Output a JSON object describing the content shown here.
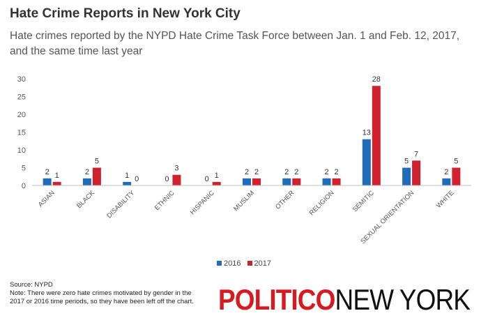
{
  "header": {
    "title": "Hate Crime Reports in New York City",
    "subtitle": "Hate crimes reported by the NYPD Hate Crime Task Force between Jan. 1 and Feb. 12, 2017, and the same time last year"
  },
  "chart_data": {
    "type": "bar",
    "categories": [
      "ASIAN",
      "BLACK",
      "DISABILITY",
      "ETHNIC",
      "HISPANIC",
      "MUSLIM",
      "OTHER",
      "RELIGION",
      "SEMITIC",
      "SEXUAL ORIENTATION",
      "WHITE"
    ],
    "series": [
      {
        "name": "2016",
        "color": "#1f6cb8",
        "values": [
          2,
          2,
          1,
          0,
          0,
          2,
          2,
          2,
          13,
          5,
          2
        ]
      },
      {
        "name": "2017",
        "color": "#d0212e",
        "values": [
          1,
          5,
          0,
          3,
          1,
          2,
          2,
          2,
          28,
          7,
          5
        ]
      }
    ],
    "ylim": [
      0,
      30
    ],
    "yticks": [
      0,
      5,
      10,
      15,
      20,
      25,
      30
    ],
    "grid": false,
    "legend": "bottom",
    "data_labels": true
  },
  "footer": {
    "source": "Source: NYPD",
    "note": "Note: There were zero hate crimes motivated by gender in the 2017 or 2016 time periods, so they have been left off the chart."
  },
  "logo": {
    "bold": "POLITICO",
    "light": "NEW YORK",
    "bold_color": "#d71920",
    "light_color": "#111111"
  }
}
